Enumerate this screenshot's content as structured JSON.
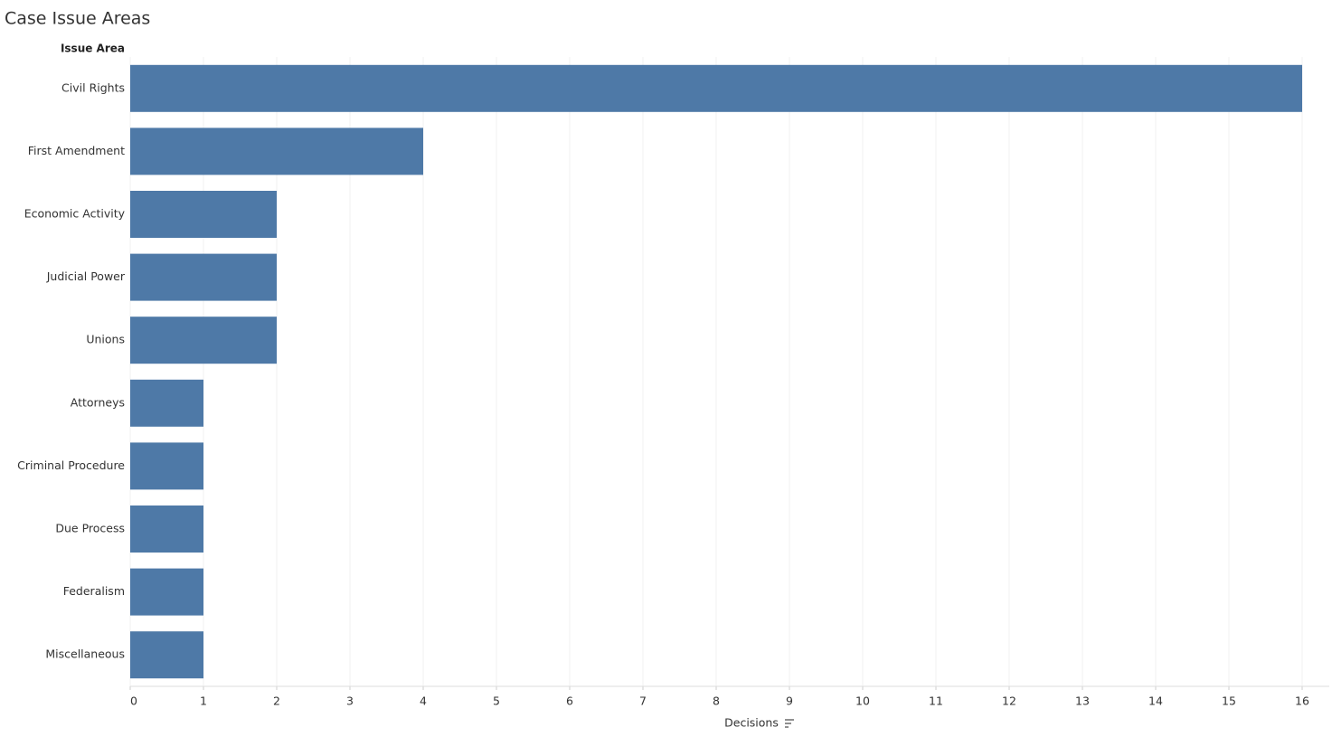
{
  "chart_data": {
    "type": "barh",
    "title": "Case Issue Areas",
    "y_label": "Issue Area",
    "x_label": "Decisions",
    "categories": [
      "Civil Rights",
      "First Amendment",
      "Economic Activity",
      "Judicial Power",
      "Unions",
      "Attorneys",
      "Criminal Procedure",
      "Due Process",
      "Federalism",
      "Miscellaneous"
    ],
    "values": [
      16,
      4,
      2,
      2,
      2,
      1,
      1,
      1,
      1,
      1
    ],
    "color": "#4e79a7",
    "xlim": [
      0,
      16
    ],
    "xticks": [
      0,
      1,
      2,
      3,
      4,
      5,
      6,
      7,
      8,
      9,
      10,
      11,
      12,
      13,
      14,
      15,
      16
    ],
    "grid": true
  }
}
